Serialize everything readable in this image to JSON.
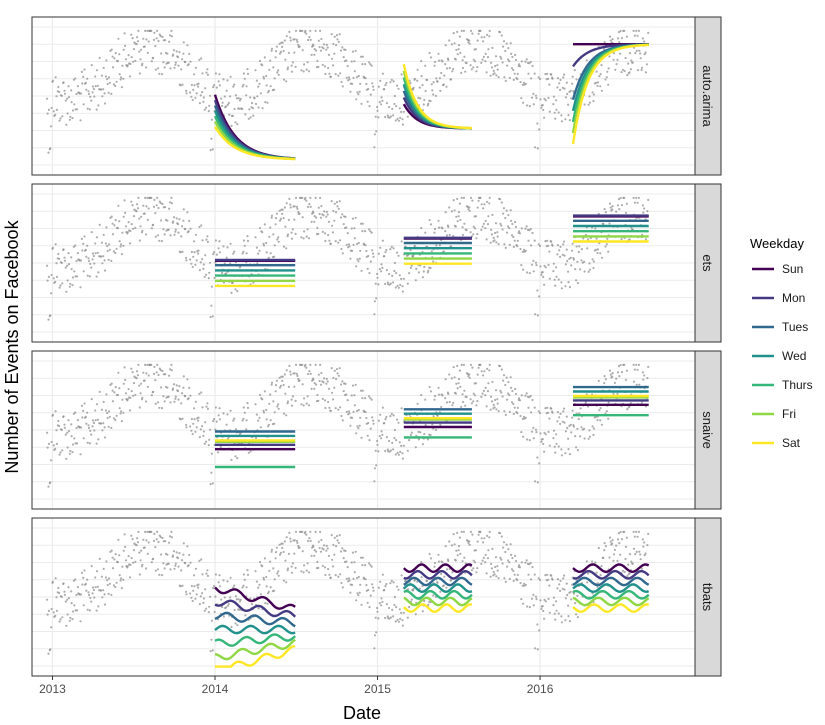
{
  "chart_data": {
    "type": "line",
    "xlabel": "Date",
    "ylabel": "Number of Events on Facebook",
    "x_range": [
      "2012-11-16",
      "2016-12-14"
    ],
    "x_ticks": [
      "2013",
      "2014",
      "2015",
      "2016"
    ],
    "y_ticks_labeled": false,
    "grid": true,
    "legend": {
      "title": "Weekday",
      "placement": "right"
    },
    "facets": [
      "auto.arima",
      "ets",
      "snaive",
      "tbats"
    ],
    "series": [
      {
        "name": "Sun",
        "color": "#440154"
      },
      {
        "name": "Mon",
        "color": "#443a83"
      },
      {
        "name": "Tues",
        "color": "#31688e"
      },
      {
        "name": "Wed",
        "color": "#21918c"
      },
      {
        "name": "Thurs",
        "color": "#35b779"
      },
      {
        "name": "Fri",
        "color": "#8fd744"
      },
      {
        "name": "Sat",
        "color": "#fde725"
      }
    ],
    "observed": {
      "description_shown": "grey scatter of daily counts",
      "seasonal_peak_period_years": 1,
      "approx_range_relative": [
        0.05,
        0.95
      ]
    },
    "forecast_windows": [
      [
        "2014-01-01",
        "2014-06-30"
      ],
      [
        "2015-03-01",
        "2015-08-01"
      ],
      [
        "2016-03-15",
        "2016-09-01"
      ]
    ]
  }
}
